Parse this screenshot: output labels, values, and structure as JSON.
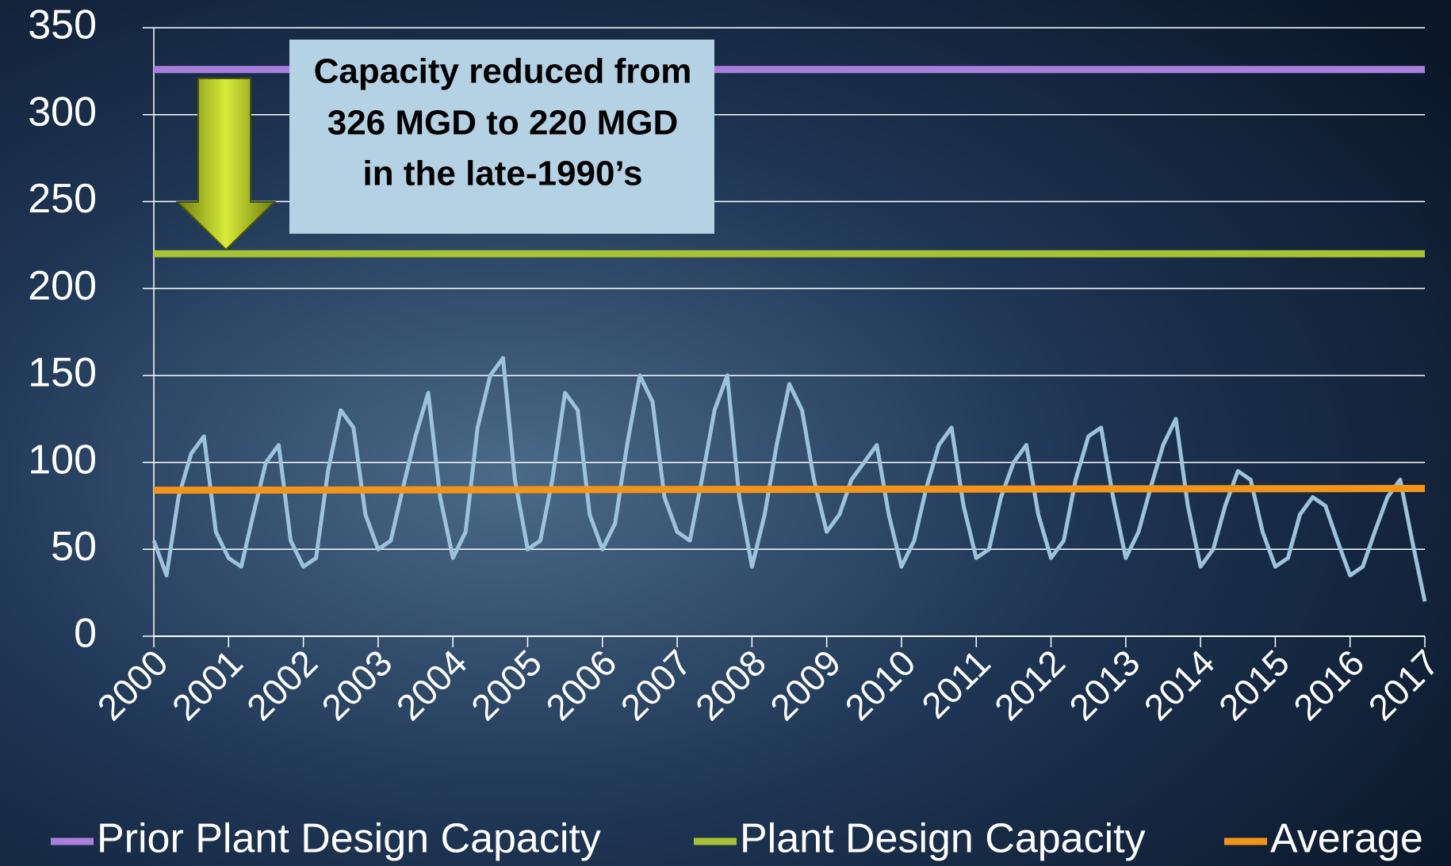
{
  "chart_data": {
    "type": "line",
    "annotation": {
      "text": [
        "Capacity reduced from",
        "326 MGD to 220 MGD",
        "in the late-1990’s"
      ]
    },
    "xlim": [
      2000,
      2017
    ],
    "xticks": [
      2000,
      2001,
      2002,
      2003,
      2004,
      2005,
      2006,
      2007,
      2008,
      2009,
      2010,
      2011,
      2012,
      2013,
      2014,
      2015,
      2016,
      2017
    ],
    "ylim": [
      0,
      350
    ],
    "yticks": [
      0,
      50,
      100,
      150,
      200,
      250,
      300,
      350
    ],
    "grid": true,
    "legend": "bottom",
    "series": [
      {
        "color": "#9cc3db",
        "x": [
          2000,
          2000.17,
          2000.33,
          2000.5,
          2000.67,
          2000.83,
          2001,
          2001.17,
          2001.33,
          2001.5,
          2001.67,
          2001.83,
          2002,
          2002.17,
          2002.33,
          2002.5,
          2002.67,
          2002.83,
          2003,
          2003.17,
          2003.33,
          2003.5,
          2003.67,
          2003.83,
          2004,
          2004.17,
          2004.33,
          2004.5,
          2004.67,
          2004.83,
          2005,
          2005.17,
          2005.33,
          2005.5,
          2005.67,
          2005.83,
          2006,
          2006.17,
          2006.33,
          2006.5,
          2006.67,
          2006.83,
          2007,
          2007.17,
          2007.33,
          2007.5,
          2007.67,
          2007.83,
          2008,
          2008.17,
          2008.33,
          2008.5,
          2008.67,
          2008.83,
          2009,
          2009.17,
          2009.33,
          2009.5,
          2009.67,
          2009.83,
          2010,
          2010.17,
          2010.33,
          2010.5,
          2010.67,
          2010.83,
          2011,
          2011.17,
          2011.33,
          2011.5,
          2011.67,
          2011.83,
          2012,
          2012.17,
          2012.33,
          2012.5,
          2012.67,
          2012.83,
          2013,
          2013.17,
          2013.33,
          2013.5,
          2013.67,
          2013.83,
          2014,
          2014.17,
          2014.33,
          2014.5,
          2014.67,
          2014.83,
          2015,
          2015.17,
          2015.33,
          2015.5,
          2015.67,
          2015.83,
          2016,
          2016.17,
          2016.33,
          2016.5,
          2016.67,
          2016.83,
          2017
        ],
        "values": [
          55,
          35,
          80,
          105,
          115,
          60,
          45,
          40,
          70,
          100,
          110,
          55,
          40,
          45,
          95,
          130,
          120,
          70,
          50,
          55,
          85,
          115,
          140,
          80,
          45,
          60,
          120,
          150,
          160,
          90,
          50,
          55,
          90,
          140,
          130,
          70,
          50,
          65,
          110,
          150,
          135,
          80,
          60,
          55,
          90,
          130,
          150,
          80,
          40,
          70,
          110,
          145,
          130,
          90,
          60,
          70,
          90,
          100,
          110,
          70,
          40,
          55,
          85,
          110,
          120,
          75,
          45,
          50,
          80,
          100,
          110,
          70,
          45,
          55,
          90,
          115,
          120,
          80,
          45,
          60,
          85,
          110,
          125,
          75,
          40,
          50,
          75,
          95,
          90,
          60,
          40,
          45,
          70,
          80,
          75,
          55,
          35,
          40,
          60,
          80,
          90,
          55,
          20
        ]
      },
      {
        "name": "Prior Plant Design Capacity",
        "color": "#a97fdd",
        "x": [
          2000,
          2017
        ],
        "values": [
          326,
          326
        ]
      },
      {
        "name": "Plant Design Capacity",
        "color": "#a7c234",
        "x": [
          2000,
          2017
        ],
        "values": [
          220,
          220
        ]
      },
      {
        "name": "Average",
        "color": "#f3941a",
        "x": [
          2000,
          2017
        ],
        "values": [
          84,
          85
        ]
      }
    ]
  }
}
